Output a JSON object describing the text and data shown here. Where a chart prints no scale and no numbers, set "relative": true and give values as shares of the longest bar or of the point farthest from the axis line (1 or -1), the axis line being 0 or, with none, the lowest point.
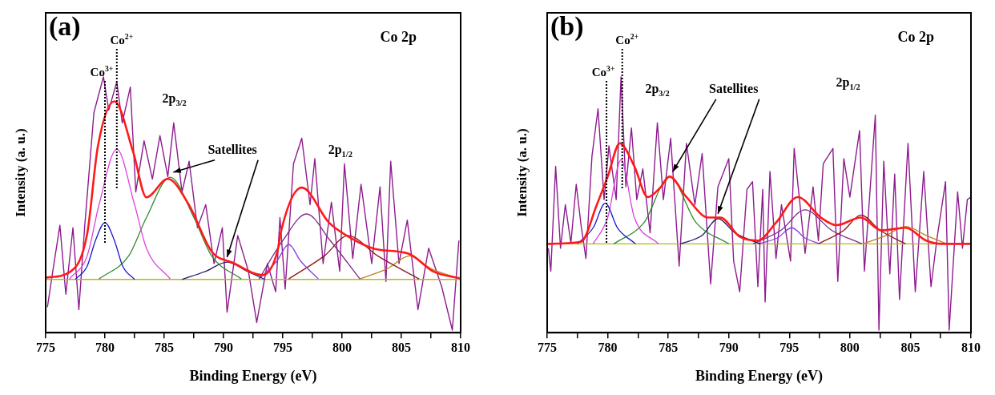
{
  "chart_data": [
    {
      "type": "line",
      "title": "(a)",
      "xlabel": "Binding Energy (eV)",
      "ylabel": "Intensity (a. u.)",
      "relative": true,
      "tick_labels": "x",
      "grid": false,
      "legend": false,
      "marker": "none",
      "xlim": [
        775,
        810
      ],
      "xticks": [
        775,
        {
          "value": 777.5,
          "label": null
        },
        780,
        {
          "value": 782.5,
          "label": null
        },
        785,
        {
          "value": 787.5,
          "label": null
        },
        790,
        {
          "value": 792.5,
          "label": null
        },
        795,
        {
          "value": 797.5,
          "label": null
        },
        800,
        {
          "value": 802.5,
          "label": null
        },
        805,
        {
          "value": 807.5,
          "label": null
        },
        810
      ],
      "series": [
        {
          "color": "#8e1b8e",
          "x": [
            775.15,
            775.6,
            776.2,
            776.7,
            777.3,
            777.8,
            778.3,
            779.07,
            779.87,
            780.32,
            781.0,
            781.46,
            782.14,
            782.6,
            783.3,
            784.0,
            784.64,
            785.3,
            785.8,
            786.5,
            787.1,
            787.8,
            788.5,
            789.2,
            789.9,
            790.3,
            791.2,
            792.1,
            792.8,
            793.7,
            794.4,
            794.76,
            795.2,
            795.9,
            796.6,
            797.3,
            797.7,
            798.4,
            799.1,
            799.8,
            800.2,
            800.9,
            801.6,
            802.5,
            803.2,
            803.7,
            804.1,
            804.8,
            805.5,
            806.4,
            807.3,
            808.4,
            809.3,
            809.85
          ],
          "values": [
            0.1,
            0.24,
            0.42,
            0.15,
            0.41,
            0.09,
            0.42,
            0.86,
            1.0,
            0.87,
            0.98,
            0.82,
            0.96,
            0.55,
            0.75,
            0.6,
            0.77,
            0.61,
            0.82,
            0.55,
            0.67,
            0.41,
            0.5,
            0.27,
            0.41,
            0.08,
            0.38,
            0.24,
            0.04,
            0.27,
            0.16,
            0.45,
            0.17,
            0.66,
            0.76,
            0.5,
            0.68,
            0.27,
            0.51,
            0.24,
            0.66,
            0.29,
            0.58,
            0.27,
            0.57,
            0.2,
            0.67,
            0.27,
            0.44,
            0.09,
            0.33,
            0.18,
            0.01,
            0.36
          ]
        },
        {
          "color": "#ff1a1a",
          "x": [
            775.0,
            777.1,
            778.5,
            779.4,
            780.8,
            782.4,
            783.5,
            785.3,
            787.1,
            789.0,
            790.8,
            793.3,
            794.6,
            794.8,
            796.6,
            798.9,
            800.4,
            802.7,
            805.7,
            807.7,
            810.0
          ],
          "values": [
            0.215,
            0.239,
            0.386,
            0.727,
            0.904,
            0.703,
            0.529,
            0.601,
            0.498,
            0.317,
            0.273,
            0.225,
            0.328,
            0.386,
            0.567,
            0.43,
            0.379,
            0.328,
            0.307,
            0.239,
            0.212
          ]
        },
        {
          "color": "#1a1acc",
          "x": [
            777.5,
            778.5,
            779.2,
            780.0,
            780.8,
            781.5,
            782.5
          ],
          "values": [
            0.208,
            0.26,
            0.36,
            0.43,
            0.36,
            0.26,
            0.208
          ]
        },
        {
          "color": "#e040e0",
          "x": [
            777.0,
            778.5,
            779.5,
            781.0,
            782.5,
            783.5,
            785.5
          ],
          "values": [
            0.21,
            0.3,
            0.5,
            0.717,
            0.5,
            0.33,
            0.21
          ]
        },
        {
          "color": "#2e8b2e",
          "x": [
            779.5,
            782.0,
            783.5,
            785.5,
            787.5,
            789.0,
            791.5
          ],
          "values": [
            0.21,
            0.3,
            0.45,
            0.608,
            0.45,
            0.3,
            0.21
          ]
        },
        {
          "color": "#1a1a6e",
          "x": [
            786.5,
            788.5,
            790.3,
            792.0,
            793.5
          ],
          "values": [
            0.208,
            0.24,
            0.276,
            0.24,
            0.208
          ]
        },
        {
          "color": "#8040e0",
          "x": [
            793.0,
            794.5,
            795.5,
            796.5,
            798.0
          ],
          "values": [
            0.21,
            0.28,
            0.345,
            0.28,
            0.21
          ]
        },
        {
          "color": "#7a2a8a",
          "x": [
            793.0,
            795.0,
            797.0,
            799.0,
            801.5
          ],
          "values": [
            0.21,
            0.36,
            0.464,
            0.36,
            0.21
          ]
        },
        {
          "color": "#8b1a1a",
          "x": [
            795.5,
            798.5,
            800.5,
            803.0,
            806.5
          ],
          "values": [
            0.21,
            0.3,
            0.379,
            0.3,
            0.21
          ]
        },
        {
          "color": "#c08020",
          "x": [
            801.5,
            803.8,
            805.7,
            807.5,
            810.0
          ],
          "values": [
            0.21,
            0.25,
            0.3,
            0.25,
            0.21
          ]
        },
        {
          "color": "#b5b520",
          "x": [
            775.0,
            810.0
          ],
          "values": [
            0.208,
            0.208
          ]
        }
      ],
      "ref_lines": [
        {
          "axis": "x",
          "value": 780.0,
          "label": "Co$^{3+}$",
          "line_style": "dotted"
        },
        {
          "axis": "x",
          "value": 781.0,
          "label": "Co$^{2+}$",
          "line_style": "dotted"
        }
      ],
      "annotations": [
        "Co 2p",
        "2p$_{3/2}$",
        "Satellites",
        "2p$_{1/2}$"
      ]
    },
    {
      "type": "line",
      "title": "(b)",
      "xlabel": "Binding Energy (eV)",
      "ylabel": "Intensity (a. u.)",
      "relative": true,
      "tick_labels": "x",
      "grid": false,
      "legend": false,
      "marker": "none",
      "xlim": [
        775,
        810
      ],
      "xticks": [
        775,
        {
          "value": 777.5,
          "label": null
        },
        780,
        {
          "value": 782.5,
          "label": null
        },
        785,
        {
          "value": 787.5,
          "label": null
        },
        790,
        {
          "value": 792.5,
          "label": null
        },
        795,
        {
          "value": 797.5,
          "label": null
        },
        800,
        {
          "value": 802.5,
          "label": null
        },
        805,
        {
          "value": 807.5,
          "label": null
        },
        810
      ],
      "series": [
        {
          "color": "#8e1b8e",
          "x": [
            775.1,
            775.3,
            775.7,
            776.1,
            776.5,
            776.96,
            777.4,
            777.8,
            778.2,
            778.7,
            779.2,
            779.7,
            780.1,
            780.7,
            781.1,
            781.5,
            781.96,
            782.4,
            782.9,
            783.5,
            784.1,
            784.6,
            785.2,
            785.9,
            786.5,
            787.2,
            787.8,
            788.5,
            789.1,
            790.0,
            790.4,
            790.9,
            791.5,
            791.96,
            792.4,
            792.8,
            793.0,
            793.4,
            793.9,
            794.35,
            795.1,
            795.4,
            796.3,
            796.96,
            797.4,
            797.8,
            798.6,
            799.0,
            799.5,
            800.0,
            800.8,
            801.2,
            802.1,
            802.4,
            802.8,
            803.3,
            803.7,
            804.1,
            804.8,
            805.4,
            806.1,
            806.7,
            807.2,
            807.9,
            808.2,
            808.9,
            809.3,
            809.7,
            810.0
          ],
          "values": [
            0.33,
            0.24,
            0.65,
            0.33,
            0.5,
            0.35,
            0.58,
            0.42,
            0.29,
            0.69,
            0.875,
            0.52,
            0.73,
            0.52,
            1.0,
            0.57,
            0.8,
            0.52,
            0.64,
            0.39,
            0.82,
            0.52,
            0.76,
            0.26,
            0.74,
            0.5,
            0.7,
            0.19,
            0.57,
            0.68,
            0.28,
            0.16,
            0.56,
            0.59,
            0.18,
            0.56,
            0.12,
            0.63,
            0.29,
            0.5,
            0.28,
            0.72,
            0.31,
            0.57,
            0.36,
            0.66,
            0.72,
            0.2,
            0.68,
            0.53,
            0.79,
            0.24,
            0.85,
            0.01,
            0.67,
            0.23,
            0.62,
            0.13,
            0.74,
            0.16,
            0.63,
            0.18,
            0.37,
            0.59,
            0.01,
            0.55,
            0.33,
            0.52,
            0.53
          ]
        },
        {
          "color": "#ff1a1a",
          "x": [
            775.0,
            777.8,
            779.1,
            780.0,
            781.0,
            782.2,
            783.3,
            784.4,
            785.1,
            786.5,
            788.3,
            789.3,
            790.9,
            792.4,
            793.9,
            795.7,
            797.6,
            798.9,
            800.9,
            802.6,
            804.6,
            806.3,
            807.6,
            810.0
          ],
          "values": [
            0.347,
            0.355,
            0.5,
            0.61,
            0.74,
            0.65,
            0.53,
            0.57,
            0.61,
            0.53,
            0.45,
            0.45,
            0.375,
            0.36,
            0.43,
            0.53,
            0.45,
            0.42,
            0.45,
            0.4,
            0.41,
            0.36,
            0.347,
            0.347
          ]
        },
        {
          "color": "#1a1acc",
          "x": [
            777.5,
            778.8,
            779.8,
            780.8,
            782.3
          ],
          "values": [
            0.347,
            0.41,
            0.506,
            0.41,
            0.347
          ]
        },
        {
          "color": "#e040e0",
          "x": [
            778.8,
            780.0,
            781.1,
            782.2,
            784.2
          ],
          "values": [
            0.347,
            0.45,
            0.676,
            0.45,
            0.347
          ]
        },
        {
          "color": "#2e8b2e",
          "x": [
            780.5,
            783.0,
            785.1,
            787.3,
            790.0
          ],
          "values": [
            0.347,
            0.43,
            0.61,
            0.43,
            0.347
          ]
        },
        {
          "color": "#1a1a6e",
          "x": [
            786.0,
            787.8,
            789.1,
            790.5,
            792.6
          ],
          "values": [
            0.347,
            0.38,
            0.446,
            0.39,
            0.347
          ]
        },
        {
          "color": "#8040e0",
          "x": [
            792.4,
            794.0,
            795.2,
            796.3,
            797.5
          ],
          "values": [
            0.347,
            0.37,
            0.41,
            0.37,
            0.347
          ]
        },
        {
          "color": "#7a2a8a",
          "x": [
            792.0,
            794.3,
            796.3,
            798.5,
            801.0
          ],
          "values": [
            0.347,
            0.4,
            0.48,
            0.4,
            0.347
          ]
        },
        {
          "color": "#8b1a1a",
          "x": [
            797.4,
            799.5,
            800.9,
            802.5,
            804.6
          ],
          "values": [
            0.347,
            0.4,
            0.46,
            0.4,
            0.347
          ]
        },
        {
          "color": "#c08020",
          "x": [
            801.1,
            803.0,
            804.6,
            806.3,
            808.0
          ],
          "values": [
            0.347,
            0.38,
            0.415,
            0.38,
            0.347
          ]
        },
        {
          "color": "#b5b520",
          "x": [
            775.0,
            810.0
          ],
          "values": [
            0.347,
            0.347
          ]
        }
      ],
      "ref_lines": [
        {
          "axis": "x",
          "value": 779.9,
          "label": "Co$^{3+}$",
          "line_style": "dotted"
        },
        {
          "axis": "x",
          "value": 781.2,
          "label": "Co$^{2+}$",
          "line_style": "dotted"
        }
      ],
      "annotations": [
        "Co 2p",
        "2p$_{3/2}$",
        "Satellites",
        "2p$_{1/2}$"
      ]
    }
  ]
}
